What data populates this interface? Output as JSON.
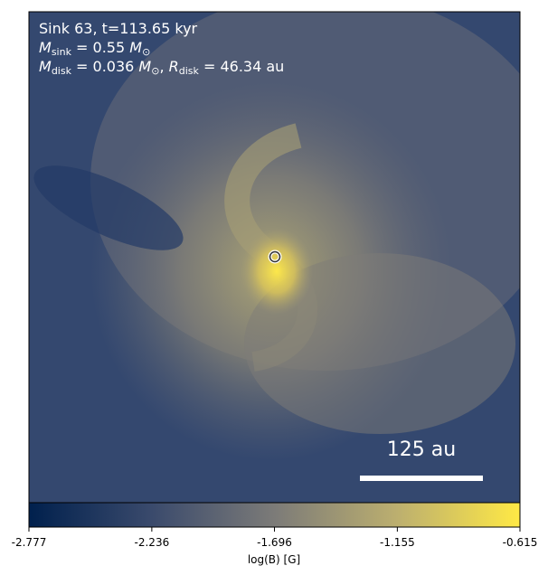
{
  "annotation": {
    "line1": "Sink 63, t=113.65 kyr",
    "line2": [
      "M",
      "sink",
      " = 0.55 ",
      "M",
      "⊙"
    ],
    "line3": [
      "M",
      "disk",
      " = 0.036 ",
      "M",
      "⊙",
      ", ",
      "R",
      "disk",
      " = 46.34 au"
    ]
  },
  "scale_bar": {
    "label": "125 au"
  },
  "colorbar": {
    "label": "log(B) [G]",
    "lim": [
      -2.777,
      -0.615
    ],
    "ticks": [
      -2.777,
      -2.236,
      -1.696,
      -1.155,
      -0.615
    ],
    "colors": [
      "#00204d",
      "#3a4a6c",
      "#7c7b78",
      "#bcaf6f",
      "#ffe945"
    ]
  }
}
